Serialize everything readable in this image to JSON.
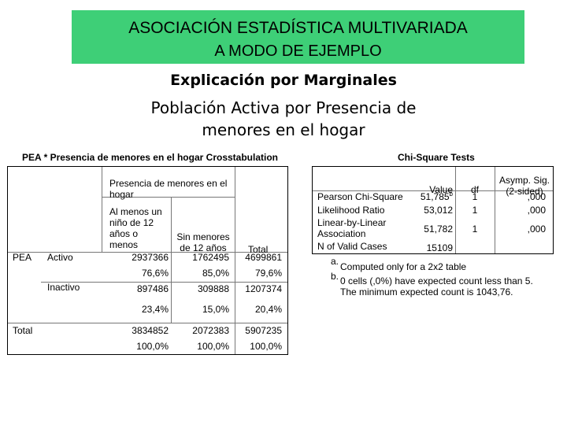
{
  "banner": {
    "line1": "ASOCIACIÓN ESTADÍSTICA MULTIVARIADA",
    "line2": "A MODO DE EJEMPLO"
  },
  "heading": "Explicación por Marginales",
  "subheading_line1": "Población Activa por Presencia de",
  "subheading_line2": "menores en el hogar",
  "colors": {
    "banner_bg": "#3ecf77"
  },
  "crosstab": {
    "title": "PEA * Presencia de menores en el hogar Crosstabulation",
    "header_group": "Presencia de menores en el hogar",
    "col1_header": "Al menos un niño de 12 años o menos",
    "col2_header": "Sin menores de 12 años",
    "col_total": "Total",
    "row_var": "PEA",
    "rows": [
      {
        "label": "Activo",
        "counts": [
          "2937366",
          "1762495",
          "4699861"
        ],
        "pcts": [
          "76,6%",
          "85,0%",
          "79,6%"
        ]
      },
      {
        "label": "Inactivo",
        "counts": [
          "897486",
          "309888",
          "1207374"
        ],
        "pcts": [
          "23,4%",
          "15,0%",
          "20,4%"
        ]
      }
    ],
    "total": {
      "label": "Total",
      "counts": [
        "3834852",
        "2072383",
        "5907235"
      ],
      "pcts": [
        "100,0%",
        "100,0%",
        "100,0%"
      ]
    }
  },
  "chisq": {
    "title": "Chi-Square Tests",
    "headers": {
      "value": "Value",
      "df": "df",
      "sig": "Asymp. Sig. (2-sided)"
    },
    "rows": [
      {
        "label": "Pearson Chi-Square",
        "value": "51,785",
        "sup": "b",
        "df": "1",
        "sig": ",000"
      },
      {
        "label": "Likelihood Ratio",
        "value": "53,012",
        "df": "1",
        "sig": ",000"
      },
      {
        "label": "Linear-by-Linear Association",
        "value": "51,782",
        "df": "1",
        "sig": ",000"
      },
      {
        "label": "N of Valid Cases",
        "value": "15109"
      }
    ],
    "footnotes": [
      {
        "mark": "a.",
        "text": "Computed only for a 2x2 table"
      },
      {
        "mark": "b.",
        "text": "0 cells (,0%) have expected count less than 5. The minimum expected count is 1043,76."
      }
    ]
  }
}
